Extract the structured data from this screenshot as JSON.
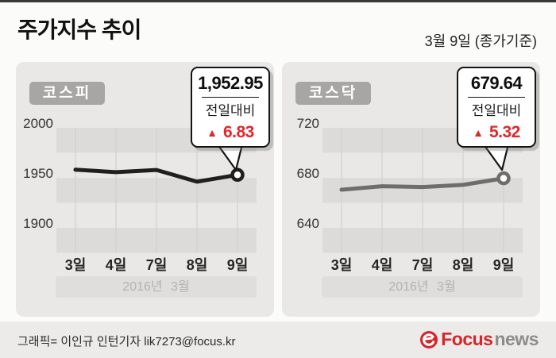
{
  "page": {
    "title": "주가지수 추이",
    "date_note": "3월 9일 (종가기준)",
    "credit": "그래픽= 이인규 인턴기자 lik7273@focus.kr",
    "logo": {
      "focus": "Focus",
      "news": "news"
    }
  },
  "colors": {
    "red": "#e4252b",
    "logo_red": "#d6252b",
    "logo_gray": "#8d8c8a",
    "band_dark": "#dcdbd9",
    "gridline": "#cdccca",
    "panel_bg": "#e9e8e6"
  },
  "chart_data": [
    {
      "type": "line",
      "name": "코스피",
      "categories": [
        "3일",
        "4일",
        "7일",
        "8일",
        "9일"
      ],
      "values": [
        1958.08,
        1955.63,
        1957.87,
        1946.12,
        1952.95
      ],
      "ylim": [
        1875,
        2000
      ],
      "ytick_labels": [
        "2000",
        "1950",
        "1900"
      ],
      "ytick_values": [
        2000,
        1950,
        1900
      ],
      "xlabel": "",
      "ylabel": "",
      "period_label": "2016년 3월",
      "grid": "horizontal-bands-and-vertical-lines",
      "line_color": "#1f1f1f",
      "callout": {
        "value": "1,952.95",
        "label": "전일대비",
        "direction": "▲",
        "change": "6.83"
      }
    },
    {
      "type": "line",
      "name": "코스닥",
      "categories": [
        "3일",
        "4일",
        "7일",
        "8일",
        "9일"
      ],
      "values": [
        670.46,
        673.27,
        672.66,
        674.32,
        679.64
      ],
      "ylim": [
        620,
        720
      ],
      "ytick_labels": [
        "720",
        "680",
        "640"
      ],
      "ytick_values": [
        720,
        680,
        640
      ],
      "xlabel": "",
      "ylabel": "",
      "period_label": "2016년 3월",
      "grid": "horizontal-bands-and-vertical-lines",
      "line_color": "#6e6d6b",
      "callout": {
        "value": "679.64",
        "label": "전일대비",
        "direction": "▲",
        "change": "5.32"
      }
    }
  ]
}
